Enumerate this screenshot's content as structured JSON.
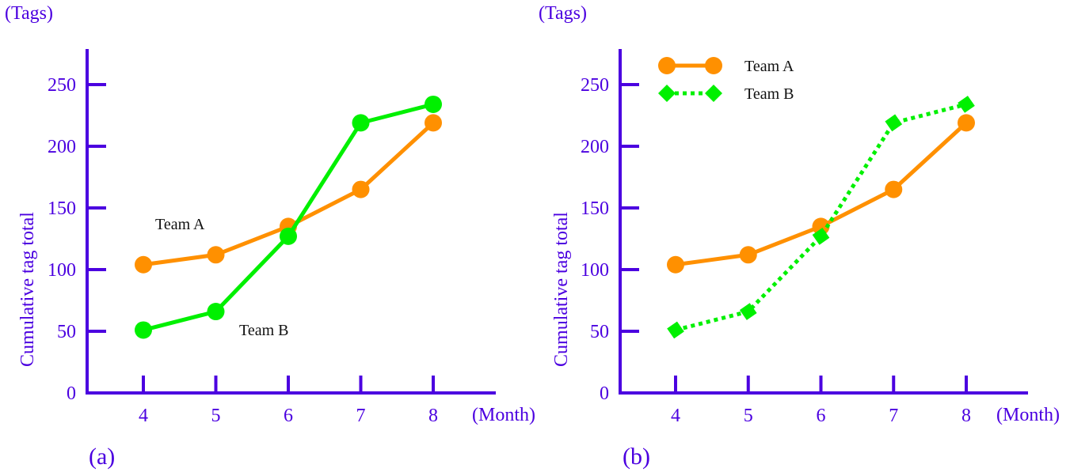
{
  "chart_data": [
    {
      "type": "line",
      "panel_label": "(a)",
      "y_unit_label": "(Tags)",
      "ylabel": "Cumulative tag total",
      "xlabel": "(Month)",
      "x": [
        4,
        5,
        6,
        7,
        8
      ],
      "xticks": [
        "4",
        "5",
        "6",
        "7",
        "8"
      ],
      "yticks": [
        0,
        50,
        100,
        150,
        200,
        250
      ],
      "ylim": [
        0,
        280
      ],
      "grid": false,
      "legend": "none (inline annotations)",
      "series": [
        {
          "name": "Team A",
          "values": [
            104,
            112,
            135,
            165,
            219
          ],
          "color": "#ff9000",
          "marker": "circle",
          "line": "solid"
        },
        {
          "name": "Team B",
          "values": [
            51,
            66,
            127,
            219,
            234
          ],
          "color": "#00f000",
          "marker": "circle",
          "line": "solid"
        }
      ],
      "annotations": [
        {
          "text": "Team A",
          "near": "series Team A, between months 4 and 5"
        },
        {
          "text": "Team B",
          "near": "series Team B, below month 5-6"
        }
      ]
    },
    {
      "type": "line",
      "panel_label": "(b)",
      "y_unit_label": "(Tags)",
      "ylabel": "Cumulative tag total",
      "xlabel": "(Month)",
      "x": [
        4,
        5,
        6,
        7,
        8
      ],
      "xticks": [
        "4",
        "5",
        "6",
        "7",
        "8"
      ],
      "yticks": [
        0,
        50,
        100,
        150,
        200,
        250
      ],
      "ylim": [
        0,
        280
      ],
      "grid": false,
      "legend": "top-left",
      "series": [
        {
          "name": "Team A",
          "values": [
            104,
            112,
            135,
            165,
            219
          ],
          "color": "#ff9000",
          "marker": "circle",
          "line": "solid"
        },
        {
          "name": "Team B",
          "values": [
            51,
            66,
            127,
            219,
            234
          ],
          "color": "#00f000",
          "marker": "diamond",
          "line": "dotted"
        }
      ]
    }
  ],
  "colors": {
    "axis": "#4b00e0",
    "annotation": "#111111"
  }
}
